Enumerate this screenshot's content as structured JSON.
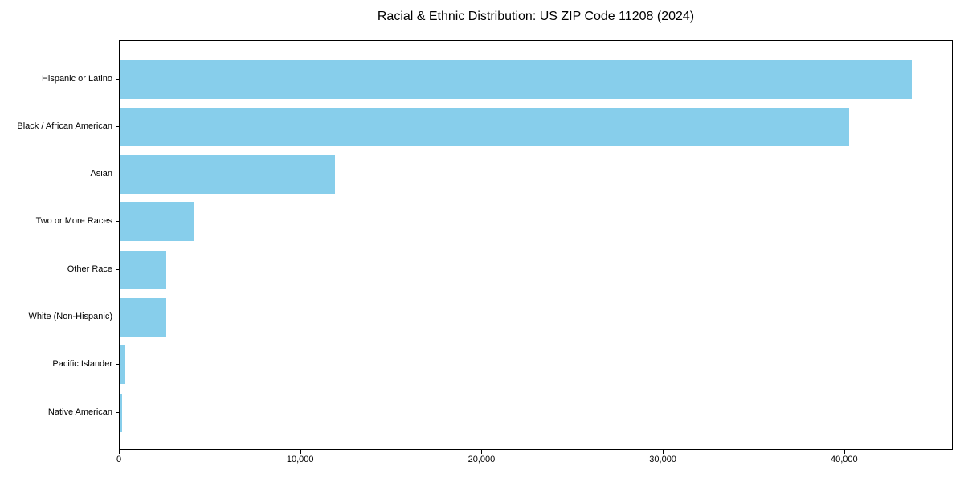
{
  "chart_data": {
    "type": "bar",
    "orientation": "horizontal",
    "title": "Racial & Ethnic Distribution: US ZIP Code 11208 (2024)",
    "xlabel": "",
    "ylabel": "",
    "categories": [
      "Hispanic or Latino",
      "Black / African American",
      "Asian",
      "Two or More Races",
      "Other Race",
      "White (Non-Hispanic)",
      "Pacific Islander",
      "Native American"
    ],
    "values": [
      43700,
      40240,
      11880,
      4140,
      2590,
      2550,
      290,
      140
    ],
    "xlim": [
      0,
      45900
    ],
    "xticks": [
      0,
      10000,
      20000,
      30000,
      40000
    ],
    "xtick_labels": [
      "0",
      "10,000",
      "20,000",
      "30,000",
      "40,000"
    ],
    "grid": false,
    "legend": null,
    "colors": {
      "bar": "#87CEEB",
      "axis": "#000000",
      "background": "#ffffff",
      "text": "#000000"
    }
  }
}
